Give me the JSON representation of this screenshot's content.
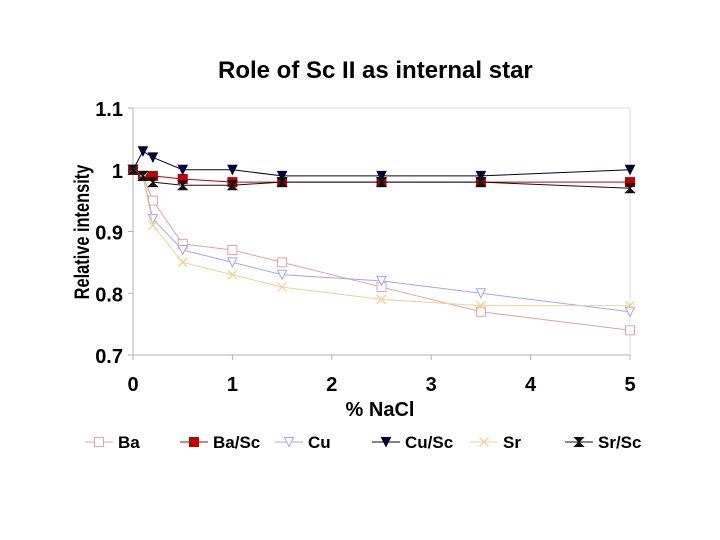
{
  "chart_data": {
    "type": "line",
    "title": "Role of Sc II as internal star",
    "xlabel": "% NaCl",
    "ylabel": "Relative intensity",
    "xlim": [
      0,
      5
    ],
    "ylim": [
      0.7,
      1.1
    ],
    "xticks": [
      "0",
      "1",
      "2",
      "3",
      "4",
      "5"
    ],
    "yticks": [
      "0.7",
      "0.8",
      "0.9",
      "1",
      "1.1"
    ],
    "series": [
      {
        "name": "Ba",
        "marker": "square-open",
        "color": "#e8a0a0",
        "x": [
          0,
          0.1,
          0.2,
          0.5,
          1,
          1.5,
          2.5,
          3.5,
          5
        ],
        "y": [
          1.0,
          0.99,
          0.95,
          0.88,
          0.87,
          0.85,
          0.81,
          0.77,
          0.74
        ]
      },
      {
        "name": "Ba/Sc",
        "marker": "square-filled",
        "color": "#c00000",
        "x": [
          0,
          0.1,
          0.2,
          0.5,
          1,
          1.5,
          2.5,
          3.5,
          5
        ],
        "y": [
          1.0,
          0.99,
          0.99,
          0.985,
          0.98,
          0.98,
          0.98,
          0.98,
          0.98
        ]
      },
      {
        "name": "Cu",
        "marker": "triangle-down-open",
        "color": "#9fa8f0",
        "x": [
          0,
          0.1,
          0.2,
          0.5,
          1,
          1.5,
          2.5,
          3.5,
          5
        ],
        "y": [
          1.0,
          0.99,
          0.92,
          0.87,
          0.85,
          0.83,
          0.82,
          0.8,
          0.77
        ]
      },
      {
        "name": "Cu/Sc",
        "marker": "triangle-down-filled",
        "color": "#000033",
        "x": [
          0,
          0.1,
          0.2,
          0.5,
          1,
          1.5,
          2.5,
          3.5,
          5
        ],
        "y": [
          1.0,
          1.03,
          1.02,
          1.0,
          1.0,
          0.99,
          0.99,
          0.99,
          1.0
        ]
      },
      {
        "name": "Sr",
        "marker": "x-open",
        "color": "#f5cf90",
        "x": [
          0,
          0.1,
          0.2,
          0.5,
          1,
          1.5,
          2.5,
          3.5,
          5
        ],
        "y": [
          1.0,
          0.99,
          0.91,
          0.85,
          0.83,
          0.81,
          0.79,
          0.78,
          0.78
        ]
      },
      {
        "name": "Sr/Sc",
        "marker": "hourglass-filled",
        "color": "#111111",
        "x": [
          0,
          0.1,
          0.2,
          0.5,
          1,
          1.5,
          2.5,
          3.5,
          5
        ],
        "y": [
          1.0,
          0.99,
          0.98,
          0.975,
          0.975,
          0.98,
          0.98,
          0.98,
          0.97
        ]
      }
    ],
    "legend": "bottom",
    "grid": false
  }
}
